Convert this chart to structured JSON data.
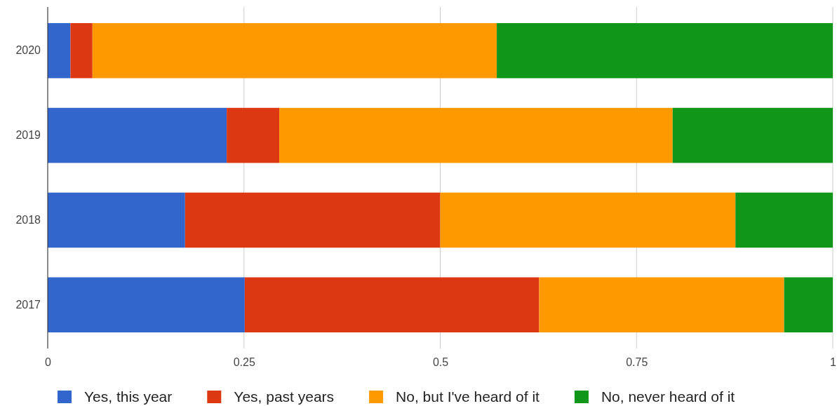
{
  "chart_data": {
    "type": "bar",
    "orientation": "horizontal",
    "stacked": true,
    "categories": [
      "2020",
      "2019",
      "2018",
      "2017"
    ],
    "series": [
      {
        "name": "Yes, this year",
        "color": "#3366cc",
        "values": [
          0.029,
          0.228,
          0.175,
          0.251
        ]
      },
      {
        "name": "Yes, past years",
        "color": "#dc3912",
        "values": [
          0.028,
          0.067,
          0.325,
          0.375
        ]
      },
      {
        "name": "No, but I've heard of it",
        "color": "#ff9900",
        "values": [
          0.515,
          0.501,
          0.376,
          0.312
        ]
      },
      {
        "name": "No, never heard of it",
        "color": "#109618",
        "values": [
          0.428,
          0.204,
          0.124,
          0.062
        ]
      }
    ],
    "xlim": [
      0,
      1
    ],
    "xticks": [
      0,
      0.25,
      0.5,
      0.75,
      1
    ],
    "grid": "x",
    "legend": "bottom"
  }
}
